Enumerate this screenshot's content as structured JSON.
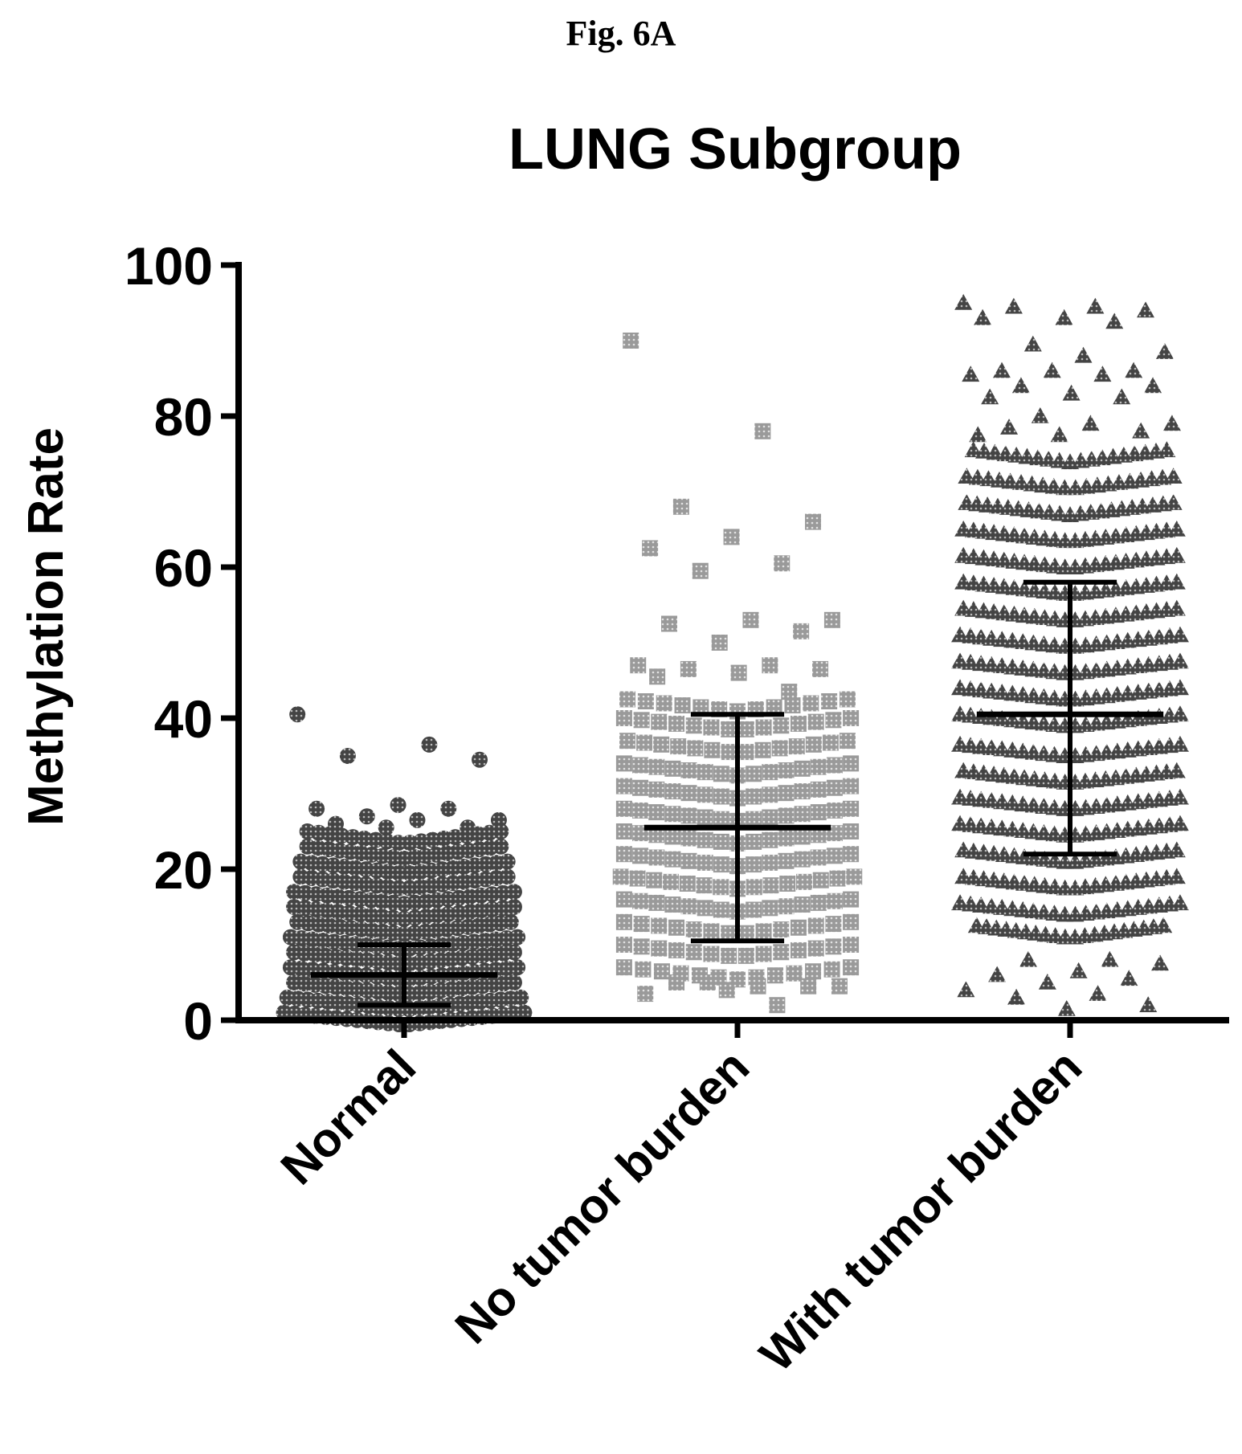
{
  "figure_label": "Fig. 6A",
  "chart_data": {
    "type": "scatter",
    "title": "LUNG Subgroup",
    "xlabel": "",
    "ylabel": "Methylation Rate",
    "ylim": [
      0,
      100
    ],
    "yticks": [
      "0",
      "20",
      "40",
      "60",
      "80",
      "100"
    ],
    "categories": [
      "Normal",
      "No tumor burden",
      "With tumor burden"
    ],
    "grid": false,
    "legend": "none",
    "marker_color": "#555555",
    "series": [
      {
        "category": "Normal",
        "marker": "circle",
        "mean": 6,
        "sd_lower": 2,
        "sd_upper": 10,
        "dense_bands": [
          {
            "y": 1,
            "half_width": 0.36,
            "count": 24
          },
          {
            "y": 3,
            "half_width": 0.35,
            "count": 24
          },
          {
            "y": 5,
            "half_width": 0.33,
            "count": 22
          },
          {
            "y": 7,
            "half_width": 0.34,
            "count": 22
          },
          {
            "y": 9,
            "half_width": 0.33,
            "count": 22
          },
          {
            "y": 11,
            "half_width": 0.34,
            "count": 22
          },
          {
            "y": 13,
            "half_width": 0.32,
            "count": 21
          },
          {
            "y": 15,
            "half_width": 0.33,
            "count": 21
          },
          {
            "y": 17,
            "half_width": 0.33,
            "count": 21
          },
          {
            "y": 19,
            "half_width": 0.31,
            "count": 20
          },
          {
            "y": 21,
            "half_width": 0.31,
            "count": 20
          },
          {
            "y": 23,
            "half_width": 0.29,
            "count": 19
          },
          {
            "y": 25,
            "half_width": 0.29,
            "count": 18
          }
        ],
        "outliers": [
          40.5,
          36.5,
          35,
          34.5,
          28.5,
          28,
          28,
          27,
          26.5,
          26.5,
          26,
          25.5,
          25.5
        ]
      },
      {
        "category": "No tumor burden",
        "marker": "square",
        "mean": 25.5,
        "sd_lower": 10.5,
        "sd_upper": 40.5,
        "dense_bands": [
          {
            "y": 7,
            "half_width": 0.34,
            "count": 13
          },
          {
            "y": 10,
            "half_width": 0.34,
            "count": 14
          },
          {
            "y": 13,
            "half_width": 0.34,
            "count": 14
          },
          {
            "y": 16,
            "half_width": 0.34,
            "count": 15
          },
          {
            "y": 19,
            "half_width": 0.35,
            "count": 15
          },
          {
            "y": 22,
            "half_width": 0.34,
            "count": 15
          },
          {
            "y": 25,
            "half_width": 0.34,
            "count": 15
          },
          {
            "y": 28,
            "half_width": 0.34,
            "count": 15
          },
          {
            "y": 31,
            "half_width": 0.34,
            "count": 15
          },
          {
            "y": 34,
            "half_width": 0.34,
            "count": 15
          },
          {
            "y": 37,
            "half_width": 0.33,
            "count": 14
          },
          {
            "y": 40,
            "half_width": 0.34,
            "count": 14
          },
          {
            "y": 42.5,
            "half_width": 0.33,
            "count": 13
          }
        ],
        "outliers": [
          90,
          78,
          68,
          66,
          64,
          62.5,
          60.5,
          59.5,
          53,
          53,
          52.5,
          51.5,
          50,
          47,
          47,
          46.5,
          46.5,
          46,
          45.5,
          43.5,
          5,
          4.5,
          4.5,
          5,
          4.5,
          4,
          3.5,
          2
        ]
      },
      {
        "category": "With tumor burden",
        "marker": "triangle",
        "mean": 40.5,
        "sd_lower": 22,
        "sd_upper": 58,
        "dense_bands": [
          {
            "y": 12.5,
            "half_width": 0.28,
            "count": 20
          },
          {
            "y": 15.5,
            "half_width": 0.33,
            "count": 22
          },
          {
            "y": 19,
            "half_width": 0.32,
            "count": 22
          },
          {
            "y": 22.5,
            "half_width": 0.32,
            "count": 22
          },
          {
            "y": 26,
            "half_width": 0.33,
            "count": 22
          },
          {
            "y": 29.5,
            "half_width": 0.33,
            "count": 22
          },
          {
            "y": 33,
            "half_width": 0.32,
            "count": 22
          },
          {
            "y": 36.5,
            "half_width": 0.33,
            "count": 22
          },
          {
            "y": 40.5,
            "half_width": 0.33,
            "count": 22
          },
          {
            "y": 44,
            "half_width": 0.33,
            "count": 22
          },
          {
            "y": 47.5,
            "half_width": 0.33,
            "count": 22
          },
          {
            "y": 51,
            "half_width": 0.33,
            "count": 22
          },
          {
            "y": 54.5,
            "half_width": 0.32,
            "count": 22
          },
          {
            "y": 58,
            "half_width": 0.32,
            "count": 22
          },
          {
            "y": 61.5,
            "half_width": 0.32,
            "count": 22
          },
          {
            "y": 65,
            "half_width": 0.32,
            "count": 22
          },
          {
            "y": 68.5,
            "half_width": 0.31,
            "count": 21
          },
          {
            "y": 72,
            "half_width": 0.31,
            "count": 20
          },
          {
            "y": 75.5,
            "half_width": 0.29,
            "count": 19
          }
        ],
        "outliers": [
          95,
          94.5,
          94.5,
          94,
          93,
          93,
          92.5,
          89.5,
          88.5,
          88,
          86,
          86,
          86,
          85.5,
          85.5,
          84,
          84,
          83,
          82.5,
          82.5,
          80,
          79,
          79,
          78.5,
          78,
          77.5,
          77.5,
          8,
          8,
          7.5,
          6.5,
          6,
          5.5,
          5,
          4,
          3.5,
          3,
          2,
          1.5
        ]
      }
    ]
  }
}
